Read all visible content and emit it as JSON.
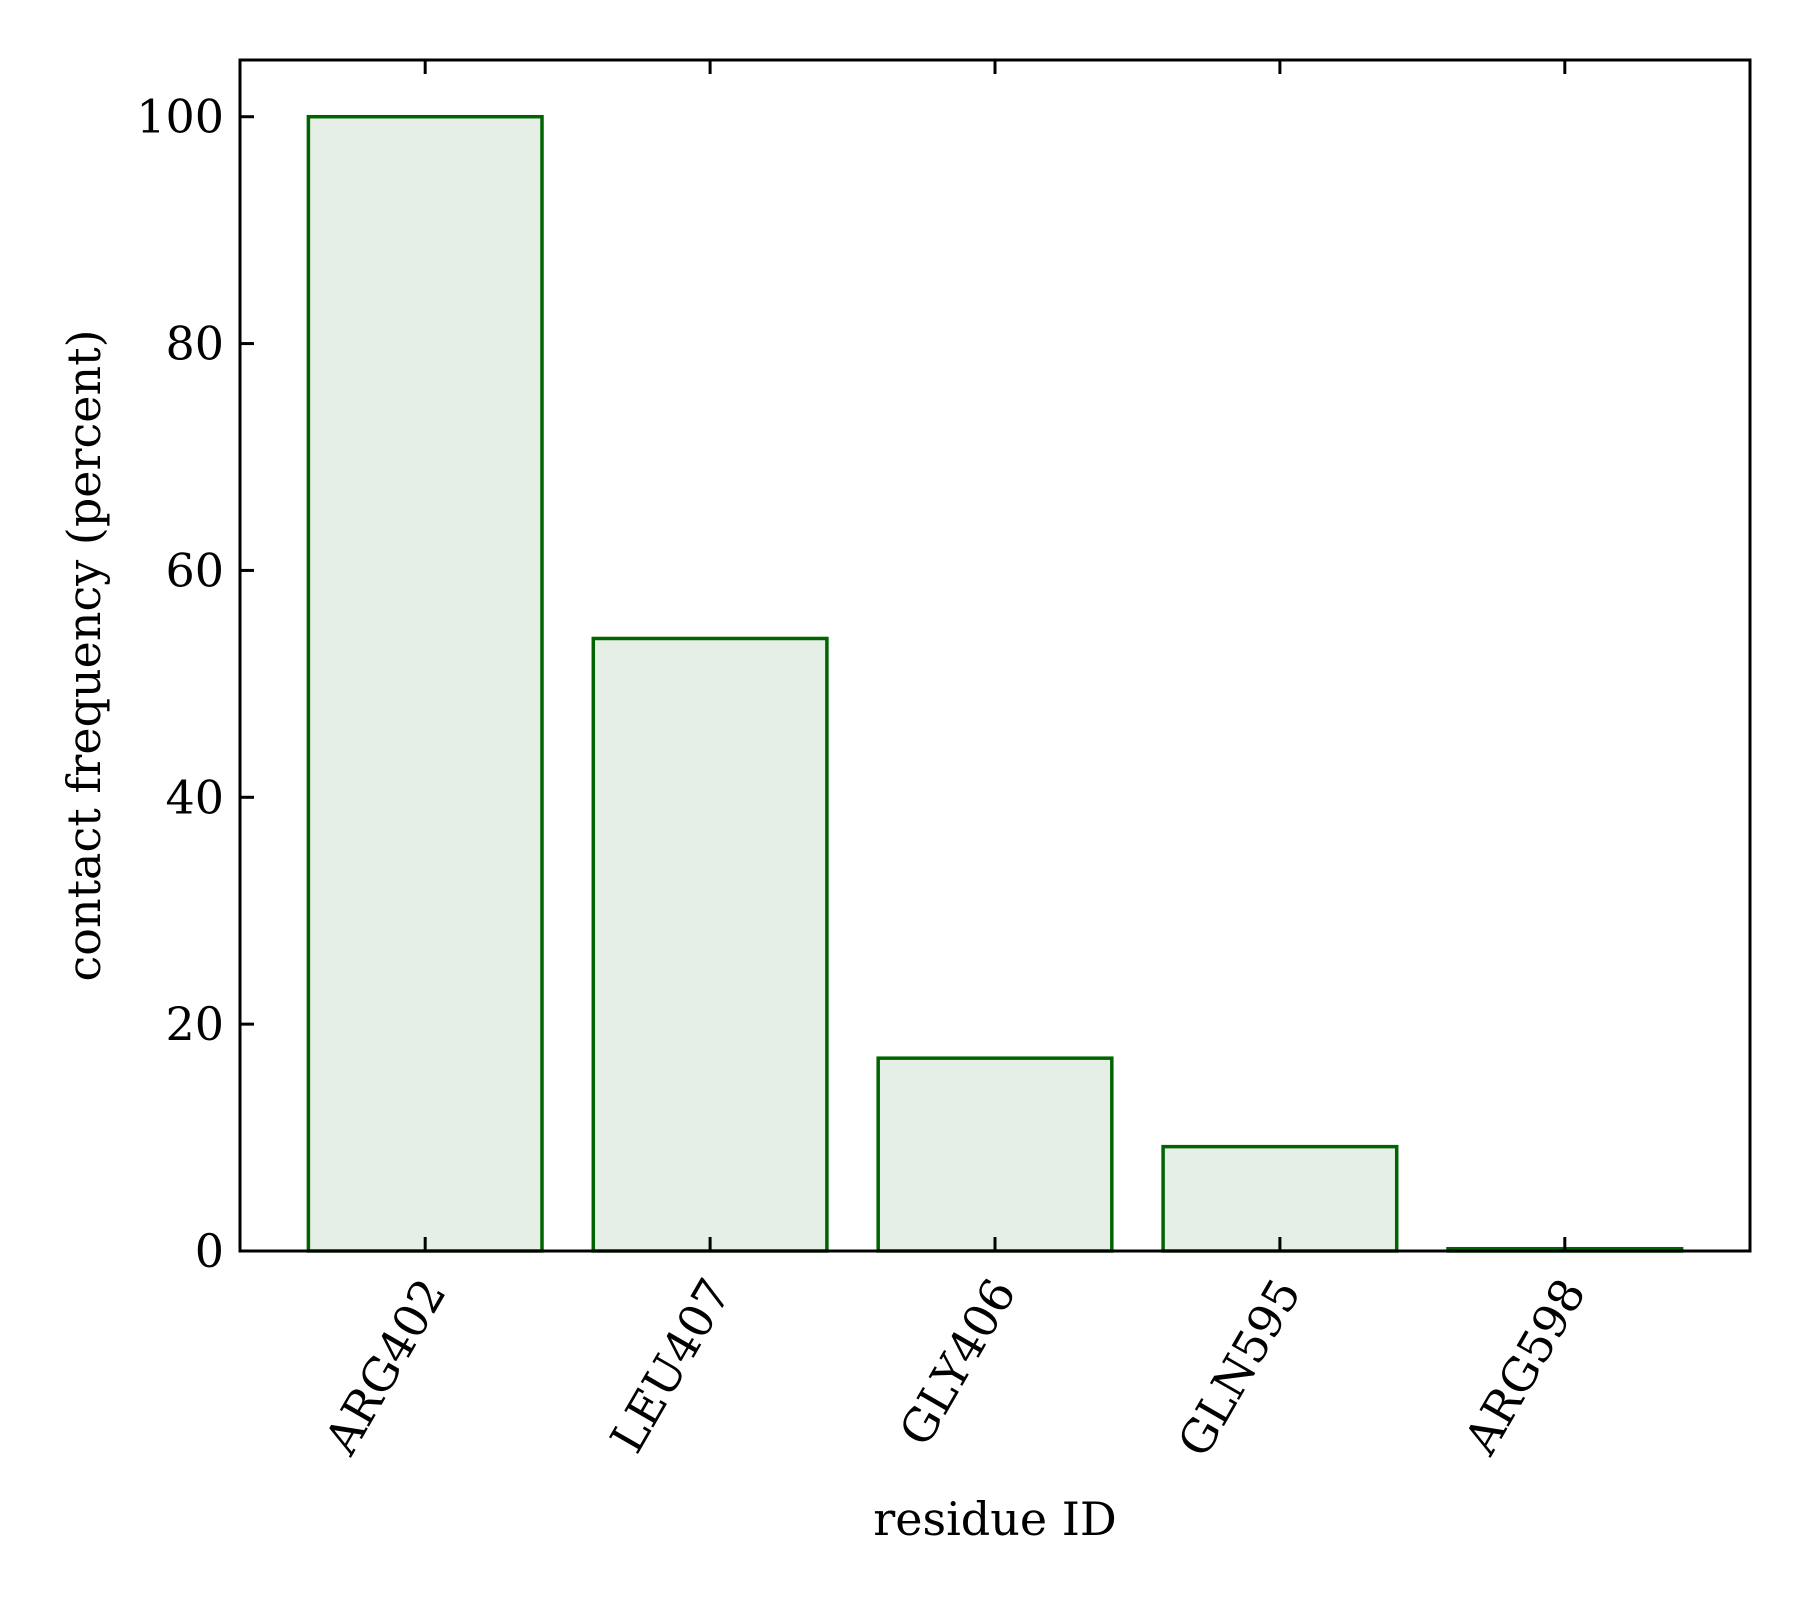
{
  "chart_data": {
    "type": "bar",
    "categories": [
      "ARG402",
      "LEU407",
      "GLY406",
      "GLN595",
      "ARG598"
    ],
    "values": [
      100,
      54,
      17,
      9.2,
      0.2
    ],
    "xlabel": "residue ID",
    "ylabel": "contact frequency (percent)",
    "ylim": [
      0,
      105
    ],
    "yticks": [
      0,
      20,
      40,
      60,
      80,
      100
    ],
    "grid": false,
    "legend": "none",
    "bar_fill": "#e5efe5",
    "bar_edge": "#006400",
    "axis_color": "#000000"
  }
}
